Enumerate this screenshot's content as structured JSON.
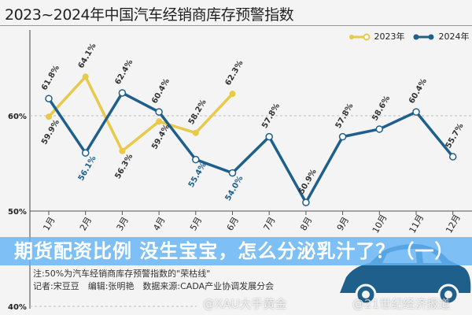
{
  "chart_data": {
    "type": "line",
    "title": "2023~2024年中国汽车经销商库存预警指数",
    "categories": [
      "1月",
      "2月",
      "3月",
      "4月",
      "5月",
      "6月",
      "7月",
      "8月",
      "9月",
      "10月",
      "11月",
      "12月"
    ],
    "series": [
      {
        "name": "2023年",
        "color": "#e8c94a",
        "values": [
          59.9,
          64.1,
          56.3,
          59.4,
          58.2,
          62.3,
          null,
          null,
          null,
          null,
          null,
          null
        ]
      },
      {
        "name": "2024年",
        "color": "#1f5f8b",
        "values": [
          61.8,
          56.1,
          62.4,
          60.4,
          55.4,
          54.0,
          57.8,
          50.9,
          57.8,
          58.6,
          60.4,
          55.7
        ]
      }
    ],
    "yticks": [
      "40%",
      "50%",
      "60%"
    ],
    "ylim": [
      40,
      65
    ],
    "unit": "%",
    "legend": "top-right",
    "reference_line": {
      "value": 50,
      "label": "50%"
    }
  },
  "notes": {
    "note": "注:50%为汽车经销商库存预警指数的\"荣枯线\"",
    "credits": "记者:宋豆豆　编辑:张明艳　数据来源:CADA产业协调发展分会"
  },
  "overlay": {
    "headline": "期货配资比例 没生宝宝，怎么分泌乳汁了？（一）"
  },
  "watermarks": [
    "@XAU大手黄金",
    "@21世纪经济报道"
  ]
}
